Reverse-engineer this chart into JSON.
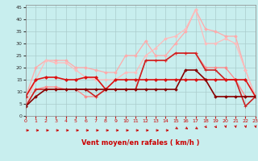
{
  "background_color": "#c8eeee",
  "grid_color": "#aacccc",
  "xlabel": "Vent moyen/en rafales ( km/h )",
  "xlim": [
    0,
    23
  ],
  "ylim": [
    0,
    46
  ],
  "yticks": [
    0,
    5,
    10,
    15,
    20,
    25,
    30,
    35,
    40,
    45
  ],
  "xticks": [
    0,
    1,
    2,
    3,
    4,
    5,
    6,
    7,
    8,
    9,
    10,
    11,
    12,
    13,
    14,
    15,
    16,
    17,
    18,
    19,
    20,
    21,
    22,
    23
  ],
  "series": [
    {
      "color": "#ffaaaa",
      "linewidth": 0.9,
      "marker": "D",
      "markersize": 1.8,
      "data": [
        8,
        20,
        23,
        23,
        23,
        20,
        20,
        19,
        18,
        18,
        25,
        25,
        31,
        25,
        25,
        30,
        35,
        44,
        36,
        35,
        33,
        33,
        19,
        8
      ]
    },
    {
      "color": "#ffbbbb",
      "linewidth": 0.9,
      "marker": "D",
      "markersize": 1.8,
      "data": [
        5,
        15,
        23,
        22,
        22,
        19,
        16,
        15,
        15,
        15,
        18,
        18,
        25,
        28,
        32,
        33,
        36,
        44,
        30,
        30,
        32,
        30,
        19,
        8
      ]
    },
    {
      "color": "#ff8888",
      "linewidth": 0.9,
      "marker": "D",
      "markersize": 1.8,
      "data": [
        4,
        11,
        12,
        12,
        11,
        11,
        8,
        8,
        11,
        11,
        11,
        11,
        23,
        23,
        23,
        26,
        26,
        26,
        20,
        20,
        20,
        15,
        8,
        8
      ]
    },
    {
      "color": "#cc2222",
      "linewidth": 1.2,
      "marker": "+",
      "markersize": 3.5,
      "data": [
        4,
        11,
        11,
        11,
        11,
        11,
        11,
        8,
        11,
        11,
        11,
        11,
        23,
        23,
        23,
        26,
        26,
        26,
        19,
        19,
        15,
        15,
        4,
        8
      ]
    },
    {
      "color": "#dd1111",
      "linewidth": 1.2,
      "marker": "D",
      "markersize": 2.0,
      "data": [
        8,
        15,
        16,
        16,
        15,
        15,
        16,
        16,
        11,
        15,
        15,
        15,
        15,
        15,
        15,
        15,
        15,
        15,
        15,
        15,
        15,
        15,
        15,
        8
      ]
    },
    {
      "color": "#880000",
      "linewidth": 1.2,
      "marker": "D",
      "markersize": 1.8,
      "data": [
        4,
        8,
        11,
        11,
        11,
        11,
        11,
        11,
        11,
        11,
        11,
        11,
        11,
        11,
        11,
        11,
        19,
        19,
        15,
        8,
        8,
        8,
        8,
        8
      ]
    }
  ],
  "arrow_color": "#cc0000",
  "arrow_directions": [
    0,
    0,
    0,
    0,
    0,
    0,
    0,
    0,
    0,
    0,
    0,
    0,
    0,
    0,
    0,
    1,
    1,
    1,
    2,
    2,
    3,
    3,
    3,
    3
  ]
}
